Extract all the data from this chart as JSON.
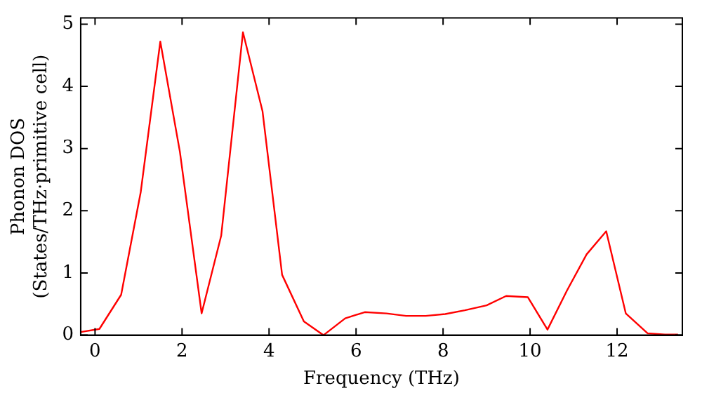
{
  "chart_data": {
    "type": "line",
    "xlabel": "Frequency (THz)",
    "ylabel": "Phonon DOS\n(States/THz·primitive cell)",
    "x": [
      -0.33,
      0.1,
      0.6,
      1.05,
      1.5,
      1.95,
      2.45,
      2.9,
      3.4,
      3.85,
      4.3,
      4.8,
      5.25,
      5.75,
      6.2,
      6.7,
      7.15,
      7.6,
      8.05,
      8.5,
      9.0,
      9.45,
      9.95,
      10.4,
      10.85,
      11.3,
      11.75,
      12.2,
      12.7,
      13.1,
      13.4
    ],
    "series": [
      {
        "color": "#ff0000",
        "values": [
          0.05,
          0.1,
          0.65,
          2.3,
          4.72,
          2.95,
          0.35,
          1.6,
          4.87,
          3.6,
          0.97,
          0.22,
          0.0,
          0.27,
          0.37,
          0.35,
          0.31,
          0.31,
          0.34,
          0.4,
          0.48,
          0.63,
          0.61,
          0.09,
          0.72,
          1.3,
          1.67,
          0.35,
          0.03,
          0.01,
          0.01
        ]
      }
    ],
    "xlim": [
      -0.33,
      13.5
    ],
    "xticks": [
      0,
      2,
      4,
      6,
      8,
      10,
      12
    ],
    "ylim": [
      0,
      5.1
    ],
    "yticks": [
      0,
      1,
      2,
      3,
      4,
      5
    ],
    "grid": false,
    "legend": false,
    "marker": "none",
    "line_style": "solid"
  }
}
